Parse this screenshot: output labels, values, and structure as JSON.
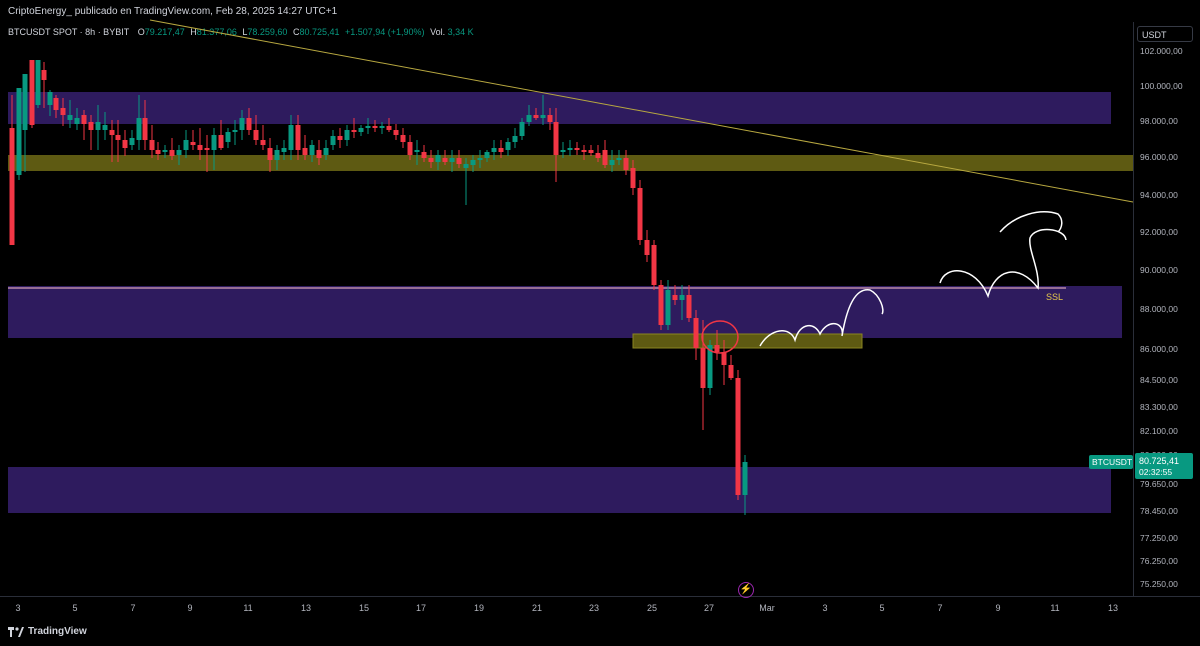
{
  "header": {
    "published": "CriptoEnergy_ publicado en TradingView.com, Feb 28, 2025 14:27 UTC+1"
  },
  "legend": {
    "symbol": "BTCUSDT SPOT · 8h · BYBIT",
    "open_label": "O",
    "open": "79.217,47",
    "high_label": "H",
    "high": "81.377,06",
    "low_label": "L",
    "low": "78.259,60",
    "close_label": "C",
    "close": "80.725,41",
    "change": "+1.507,94 (+1,90%)",
    "vol_label": "Vol.",
    "vol": "3,34 K"
  },
  "price_axis": {
    "currency": "USDT",
    "ticks": [
      "102.000,00",
      "100.000,00",
      "98.000,00",
      "96.000,00",
      "94.000,00",
      "92.000,00",
      "90.000,00",
      "88.000,00",
      "86.000,00",
      "84.500,00",
      "83.300,00",
      "82.100,00",
      "80.900,00",
      "79.650,00",
      "78.450,00",
      "77.250,00",
      "76.250,00",
      "75.250,00"
    ],
    "last_price_symbol": "BTCUSDT",
    "last_price": "80.725,41",
    "countdown": "02:32:55"
  },
  "time_axis": {
    "labels": [
      "3",
      "5",
      "7",
      "9",
      "11",
      "13",
      "15",
      "17",
      "19",
      "21",
      "23",
      "25",
      "27",
      "Mar",
      "3",
      "5",
      "7",
      "9",
      "11",
      "13"
    ]
  },
  "annotations": {
    "ssl_label": "SSL"
  },
  "colors": {
    "up": "#089981",
    "down": "#f23645",
    "purple_zone": "#2e1b5e",
    "yellow_zone": "#5e5a12",
    "trendline": "#b8a840",
    "ssl_line": "#ffc0cb"
  },
  "footer": {
    "brand": "TradingView"
  },
  "chart_data": {
    "type": "candlestick",
    "timeframe": "8h",
    "price_range": [
      74800,
      102800
    ],
    "candles_summary": {
      "feb3_to_feb24_range": [
        94500,
        101500
      ],
      "feb25_drop_to": 86300,
      "feb26_low": 82100,
      "feb28_low": 78259.6,
      "last_close": 80725.41
    }
  }
}
